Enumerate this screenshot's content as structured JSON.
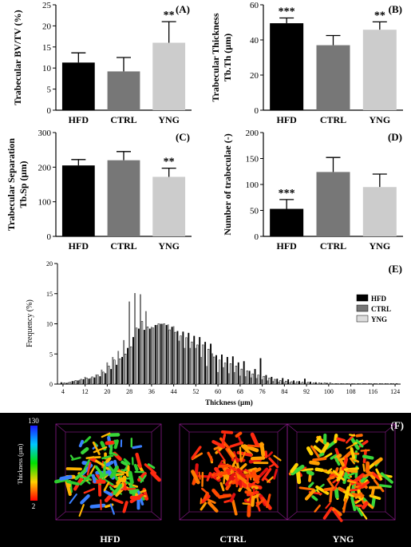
{
  "chart_data": [
    {
      "panel": "(A)",
      "type": "bar",
      "categories": [
        "HFD",
        "CTRL",
        "YNG"
      ],
      "values": [
        11.3,
        9.2,
        16.0
      ],
      "errors": [
        2.3,
        3.3,
        5.0
      ],
      "significance": [
        "",
        "",
        "**"
      ],
      "ylabel": "Trabecular BV/TV (%)",
      "ylim": [
        0,
        25
      ],
      "yticks": [
        "0",
        "5",
        "10",
        "15",
        "20",
        "25"
      ],
      "colors": [
        "#000000",
        "#777777",
        "#cccccc"
      ]
    },
    {
      "panel": "(B)",
      "type": "bar",
      "categories": [
        "HFD",
        "CTRL",
        "YNG"
      ],
      "values": [
        49.5,
        37.0,
        45.8
      ],
      "errors": [
        3.0,
        5.5,
        4.5
      ],
      "significance": [
        "***",
        "",
        "**"
      ],
      "ylabel": "Trabecular Thickness",
      "ylabel2": "Tb.Th (µm)",
      "ylim": [
        0,
        60
      ],
      "yticks": [
        "0",
        "20",
        "40",
        "60"
      ],
      "colors": [
        "#000000",
        "#777777",
        "#cccccc"
      ]
    },
    {
      "panel": "(C)",
      "type": "bar",
      "categories": [
        "HFD",
        "CTRL",
        "YNG"
      ],
      "values": [
        205,
        220,
        172
      ],
      "errors": [
        17,
        25,
        25
      ],
      "significance": [
        "",
        "",
        "**"
      ],
      "ylabel": "Trabecular Separation",
      "ylabel2": "Tb.Sp (µm)",
      "ylim": [
        0,
        300
      ],
      "yticks": [
        "0",
        "100",
        "200",
        "300"
      ],
      "colors": [
        "#000000",
        "#777777",
        "#cccccc"
      ]
    },
    {
      "panel": "(D)",
      "type": "bar",
      "categories": [
        "HFD",
        "CTRL",
        "YNG"
      ],
      "values": [
        53,
        124,
        95
      ],
      "errors": [
        18,
        28,
        25
      ],
      "significance": [
        "***",
        "",
        ""
      ],
      "ylabel": "Number of trabeculae (-)",
      "ylim": [
        0,
        200
      ],
      "yticks": [
        "0",
        "50",
        "100",
        "150",
        "200"
      ],
      "colors": [
        "#000000",
        "#777777",
        "#cccccc"
      ]
    },
    {
      "panel": "(E)",
      "type": "bar",
      "xlabel": "Thickness (µm)",
      "ylabel": "Frequency (%)",
      "ylim": [
        0,
        20
      ],
      "yticks": [
        "0",
        "5",
        "10",
        "15",
        "20"
      ],
      "x": [
        4,
        6,
        8,
        10,
        12,
        14,
        16,
        18,
        20,
        22,
        24,
        26,
        28,
        30,
        32,
        34,
        36,
        38,
        40,
        42,
        44,
        46,
        48,
        50,
        52,
        54,
        56,
        58,
        60,
        62,
        64,
        66,
        68,
        70,
        72,
        74,
        76,
        78,
        80,
        82,
        84,
        86,
        88,
        90,
        92,
        94,
        96,
        98,
        100,
        102,
        104,
        106,
        108,
        110,
        112,
        114,
        116,
        118,
        120,
        122,
        124
      ],
      "xticks": [
        "4",
        "12",
        "20",
        "28",
        "36",
        "44",
        "52",
        "60",
        "68",
        "76",
        "84",
        "92",
        "100",
        "108",
        "116",
        "124"
      ],
      "series": [
        {
          "name": "HFD",
          "color": "#000000",
          "values": [
            0.3,
            0.2,
            0.5,
            0.6,
            0.8,
            0.9,
            1.1,
            1.3,
            1.8,
            2.5,
            3.2,
            4.5,
            6.0,
            7.8,
            9.2,
            9.0,
            9.2,
            9.8,
            10.0,
            9.8,
            9.5,
            8.8,
            8.7,
            8.5,
            8.0,
            7.8,
            7.0,
            6.7,
            4.8,
            4.9,
            4.5,
            4.6,
            3.6,
            3.8,
            2.2,
            2.5,
            4.3,
            1.5,
            1.2,
            0.9,
            1.0,
            0.8,
            0.6,
            0.5,
            0.9,
            0.4,
            0.3,
            0.2,
            0.2,
            0.1,
            0.1,
            0.1,
            0.1,
            0.1,
            0.1,
            0.1,
            0.1,
            0.1,
            0.1,
            0.1,
            0.1
          ]
        },
        {
          "name": "CTRL",
          "color": "#777777",
          "values": [
            0.2,
            0.3,
            0.5,
            0.7,
            1.2,
            1.0,
            1.6,
            2.4,
            3.6,
            4.5,
            5.5,
            7.3,
            13.7,
            15.1,
            14.9,
            12.1,
            9.5,
            9.8,
            10.0,
            9.9,
            9.6,
            7.2,
            6.0,
            6.0,
            6.0,
            4.5,
            3.0,
            5.1,
            2.0,
            2.8,
            1.8,
            2.0,
            1.4,
            1.3,
            1.1,
            1.0,
            0.8,
            0.6,
            0.5,
            0.4,
            0.3,
            0.3,
            0.2,
            0.2,
            0.2,
            0.1,
            0.1,
            0.1,
            0.1,
            0.1,
            0.1,
            0.1,
            0.1,
            0.1,
            0.1,
            0.1,
            0.1,
            0.1,
            0.1,
            0.1,
            0.1
          ]
        },
        {
          "name": "YNG",
          "color": "#dddddd",
          "values": [
            0.2,
            0.3,
            0.6,
            0.8,
            1.0,
            1.2,
            1.5,
            2.0,
            3.0,
            4.0,
            4.2,
            5.0,
            6.2,
            9.3,
            10.4,
            9.5,
            9.3,
            10.0,
            10.0,
            9.0,
            8.6,
            8.0,
            7.7,
            7.0,
            6.5,
            6.5,
            5.8,
            4.5,
            4.0,
            3.5,
            3.4,
            3.0,
            2.5,
            2.2,
            1.7,
            1.5,
            1.3,
            1.0,
            0.8,
            0.6,
            0.5,
            0.4,
            0.4,
            0.3,
            0.3,
            0.2,
            0.2,
            0.2,
            0.2,
            0.1,
            0.1,
            0.1,
            0.1,
            0.1,
            0.1,
            0.1,
            0.1,
            0.1,
            0.1,
            0.1,
            0.1
          ]
        }
      ],
      "legend": "right"
    }
  ],
  "panel_f": {
    "label": "(F)",
    "colorbar_max": "130",
    "colorbar_min": "2",
    "colorbar_title": "Thickness (µm)",
    "samples": [
      "HFD",
      "CTRL",
      "YNG"
    ]
  }
}
